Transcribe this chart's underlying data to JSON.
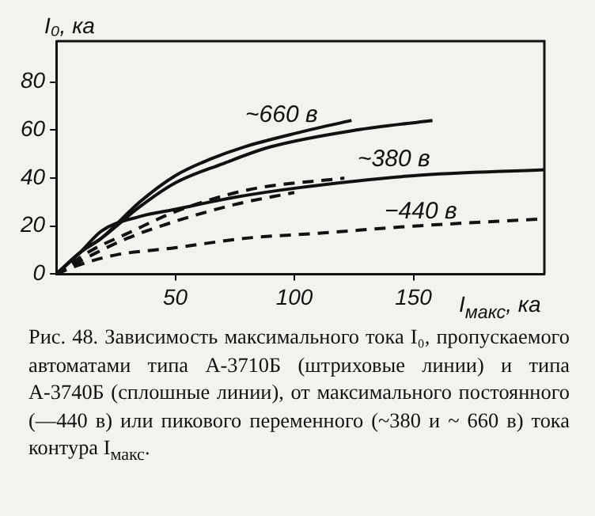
{
  "chart_data": {
    "type": "line",
    "xlabel": "I$_{макс}$, ка",
    "ylabel": "I₀, ка",
    "xlim": [
      0,
      205
    ],
    "ylim": [
      0,
      97
    ],
    "xticks": [
      50,
      100,
      150
    ],
    "yticks": [
      0,
      20,
      40,
      60,
      80
    ],
    "grid": false,
    "legend": false,
    "marker": "none",
    "series": [
      {
        "color": "#111111",
        "line_style": "solid",
        "x": [
          0,
          10,
          19,
          35,
          50,
          65,
          79,
          102,
          124
        ],
        "values": [
          0,
          9,
          15,
          30,
          41,
          48,
          53,
          59,
          64
        ]
      },
      {
        "color": "#111111",
        "line_style": "solid",
        "x": [
          0,
          10,
          19,
          35,
          50,
          70,
          90,
          126,
          158
        ],
        "values": [
          0,
          9,
          15,
          28,
          38,
          46,
          53,
          60,
          64
        ]
      },
      {
        "color": "#111111",
        "line_style": "solid",
        "x": [
          0,
          10,
          19,
          35,
          50,
          75,
          102,
          150,
          205
        ],
        "values": [
          0,
          9,
          18,
          24,
          27,
          32,
          36,
          41,
          43.5
        ]
      },
      {
        "color": "#111111",
        "line_style": "dashed",
        "x": [
          0,
          15,
          30,
          50,
          80,
          121
        ],
        "values": [
          0,
          10,
          17,
          26,
          35,
          40
        ]
      },
      {
        "color": "#111111",
        "line_style": "dashed",
        "x": [
          0,
          15,
          30,
          50,
          75,
          100
        ],
        "values": [
          0,
          8,
          15,
          22,
          29,
          34
        ]
      },
      {
        "color": "#111111",
        "line_style": "dashed",
        "x": [
          0,
          10,
          25,
          50,
          80,
          110,
          150,
          205
        ],
        "values": [
          0,
          4,
          8,
          11,
          15,
          17,
          20,
          23
        ]
      }
    ],
    "annotations": [
      "~660 в",
      "~380 в",
      "−440 в",
      "Рис. 48. Зависимость максимального тока I₀, пропускаемого автоматами типа А-3710Б (штриховые линии) и типа А-3740Б (сплошные линии), от максимального постоянного (—440 в) или пикового переменного (~380 и ~ 660 в) тока контура I$_{макс}$."
    ]
  }
}
